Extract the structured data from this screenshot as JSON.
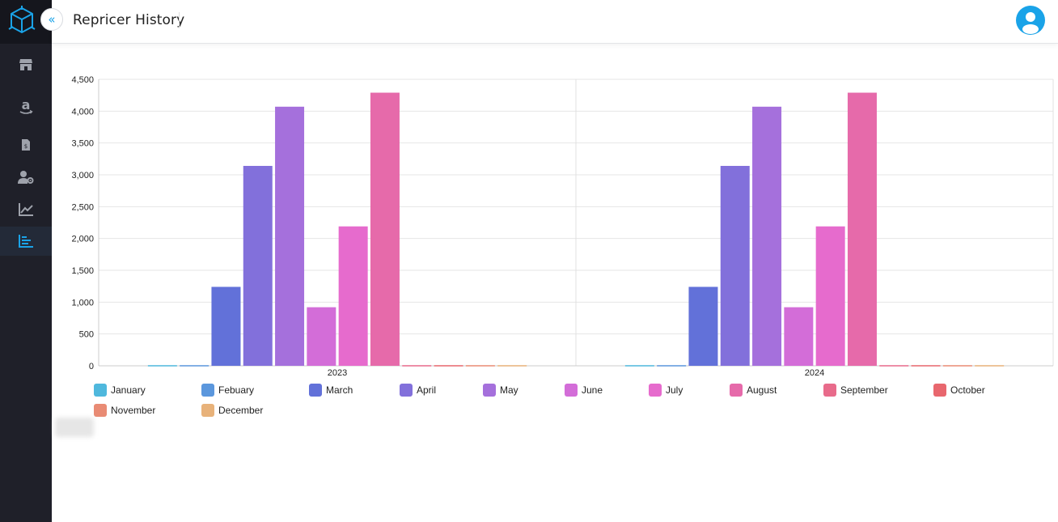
{
  "header": {
    "title": "Repricer History"
  },
  "sidebar": {
    "items": [
      {
        "name": "store",
        "icon": "store-icon"
      },
      {
        "name": "amazon",
        "icon": "amazon-icon"
      },
      {
        "name": "invoice",
        "icon": "invoice-icon"
      },
      {
        "name": "user-settings",
        "icon": "user-gear-icon"
      },
      {
        "name": "analytics",
        "icon": "line-chart-icon"
      },
      {
        "name": "repricer-history",
        "icon": "bar-chart-icon",
        "active": true
      }
    ]
  },
  "colors": {
    "sidebar": "#1f2029",
    "accent": "#1aa3e8"
  },
  "chart_data": {
    "type": "bar",
    "categories": [
      "2023",
      "2024"
    ],
    "ylim": [
      0,
      4500
    ],
    "yticks": [
      0,
      500,
      1000,
      1500,
      2000,
      2500,
      3000,
      3500,
      4000,
      4500
    ],
    "ytick_labels": [
      "0",
      "500",
      "1,000",
      "1,500",
      "2,000",
      "2,500",
      "3,000",
      "3,500",
      "4,000",
      "4,500"
    ],
    "grid": true,
    "legend_position": "bottom",
    "series": [
      {
        "name": "January",
        "color": "#4fb8dd",
        "values": [
          10,
          10
        ]
      },
      {
        "name": "Febuary",
        "color": "#5b97dd",
        "values": [
          10,
          10
        ]
      },
      {
        "name": "March",
        "color": "#6271d9",
        "values": [
          1240,
          1240
        ]
      },
      {
        "name": "April",
        "color": "#8270db",
        "values": [
          3140,
          3140
        ]
      },
      {
        "name": "May",
        "color": "#a570dc",
        "values": [
          4070,
          4070
        ]
      },
      {
        "name": "June",
        "color": "#d36dd8",
        "values": [
          920,
          920
        ]
      },
      {
        "name": "July",
        "color": "#e66bcd",
        "values": [
          2190,
          2190
        ]
      },
      {
        "name": "August",
        "color": "#e66aaa",
        "values": [
          4290,
          4290
        ]
      },
      {
        "name": "September",
        "color": "#e86b8b",
        "values": [
          10,
          10
        ]
      },
      {
        "name": "October",
        "color": "#e8676e",
        "values": [
          10,
          10
        ]
      },
      {
        "name": "November",
        "color": "#e98b74",
        "values": [
          10,
          10
        ]
      },
      {
        "name": "December",
        "color": "#e8b27a",
        "values": [
          10,
          10
        ]
      }
    ]
  }
}
